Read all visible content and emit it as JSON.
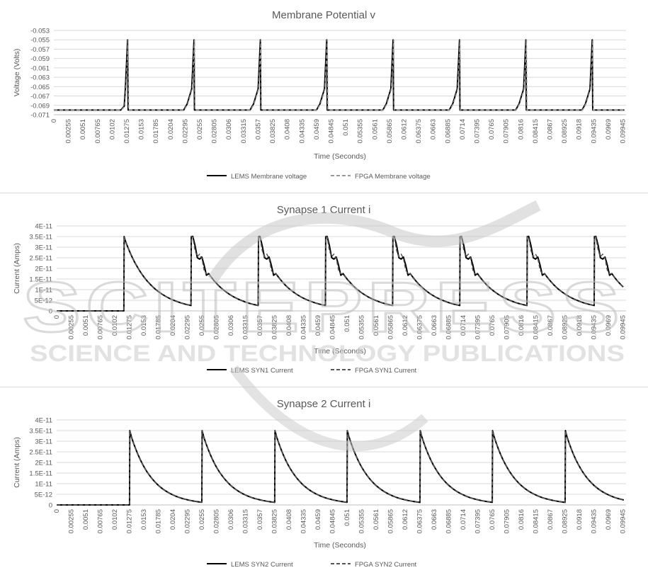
{
  "chart_data": [
    {
      "type": "line",
      "title": "Membrane Potential v",
      "xlabel": "Time (Seconds)",
      "ylabel": "Voltage (Volts)",
      "ylim": [
        -0.071,
        -0.053
      ],
      "yticks": [
        "-0.053",
        "-0.055",
        "-0.057",
        "-0.059",
        "-0.061",
        "-0.063",
        "-0.065",
        "-0.067",
        "-0.069",
        "-0.071"
      ],
      "xticks": [
        "0",
        "0.00255",
        "0.0051",
        "0.00765",
        "0.0102",
        "0.01275",
        "0.0153",
        "0.01785",
        "0.0204",
        "0.02295",
        "0.0255",
        "0.02805",
        "0.0306",
        "0.03315",
        "0.0357",
        "0.03825",
        "0.0408",
        "0.04335",
        "0.0459",
        "0.04845",
        "0.051",
        "0.05355",
        "0.0561",
        "0.05865",
        "0.0612",
        "0.06375",
        "0.0663",
        "0.06885",
        "0.0714",
        "0.07395",
        "0.0765",
        "0.07905",
        "0.0816",
        "0.08415",
        "0.0867",
        "0.08925",
        "0.0918",
        "0.09435",
        "0.0969",
        "0.09945"
      ],
      "xrange": [
        0,
        0.1
      ],
      "grid": true,
      "legend_position": "bottom",
      "series": [
        {
          "name": "LEMS Membrane voltage",
          "style": "solid",
          "color": "#000000",
          "spikes": [
            0.0129,
            0.0245,
            0.0361,
            0.0477,
            0.0593,
            0.0709,
            0.0825,
            0.0941
          ]
        },
        {
          "name": "FPGA Membrane voltage",
          "style": "dashed",
          "color": "#999999",
          "spikes": [
            0.013,
            0.0246,
            0.0362,
            0.0478,
            0.0594,
            0.071,
            0.0826,
            0.0942
          ]
        }
      ],
      "rest_value": -0.07,
      "peak_value": -0.055
    },
    {
      "type": "line",
      "title": "Synapse 1 Current i",
      "xlabel": "Time (Seconds)",
      "ylabel": "Current (Amps)",
      "ylim": [
        0,
        4e-11
      ],
      "yticks": [
        "4E-11",
        "3.5E-11",
        "3E-11",
        "2.5E-11",
        "2E-11",
        "1.5E-11",
        "1E-11",
        "5E-12",
        "0"
      ],
      "xticks": [
        "0",
        "0.00255",
        "0.0051",
        "0.00765",
        "0.0102",
        "0.01275",
        "0.0153",
        "0.01785",
        "0.0204",
        "0.02295",
        "0.0255",
        "0.02805",
        "0.0306",
        "0.03315",
        "0.0357",
        "0.03825",
        "0.0408",
        "0.04335",
        "0.0459",
        "0.04845",
        "0.051",
        "0.05355",
        "0.0561",
        "0.05865",
        "0.0612",
        "0.06375",
        "0.0663",
        "0.06885",
        "0.0714",
        "0.07395",
        "0.0765",
        "0.07905",
        "0.0816",
        "0.08415",
        "0.0867",
        "0.08925",
        "0.0918",
        "0.09435",
        "0.0969",
        "0.09945"
      ],
      "xrange": [
        0,
        0.1
      ],
      "grid": true,
      "legend_position": "bottom",
      "series": [
        {
          "name": "LEMS SYN1 Current",
          "style": "solid",
          "color": "#000000",
          "pulses": [
            0.0118,
            0.0236,
            0.0354,
            0.0472,
            0.059,
            0.0708,
            0.0826,
            0.0944
          ]
        },
        {
          "name": "FPGA SYN1 Current",
          "style": "dashed",
          "color": "#555555",
          "pulses": [
            0.0118,
            0.0236,
            0.0354,
            0.0472,
            0.059,
            0.0708,
            0.0826,
            0.0944
          ]
        }
      ],
      "peak_value": 3.5e-11
    },
    {
      "type": "line",
      "title": "Synapse 2 Current i",
      "xlabel": "Time (Seconds)",
      "ylabel": "Current (Amps)",
      "ylim": [
        0,
        4e-11
      ],
      "yticks": [
        "4E-11",
        "3.5E-11",
        "3E-11",
        "2.5E-11",
        "2E-11",
        "1.5E-11",
        "1E-11",
        "5E-12",
        "0"
      ],
      "xticks": [
        "0",
        "0.00255",
        "0.0051",
        "0.00765",
        "0.0102",
        "0.01275",
        "0.0153",
        "0.01785",
        "0.0204",
        "0.02295",
        "0.0255",
        "0.02805",
        "0.0306",
        "0.03315",
        "0.0357",
        "0.03825",
        "0.0408",
        "0.04335",
        "0.0459",
        "0.04845",
        "0.051",
        "0.05355",
        "0.0561",
        "0.05865",
        "0.0612",
        "0.06375",
        "0.0663",
        "0.06885",
        "0.0714",
        "0.07395",
        "0.0765",
        "0.07905",
        "0.0816",
        "0.08415",
        "0.0867",
        "0.08925",
        "0.0918",
        "0.09435",
        "0.0969",
        "0.09945"
      ],
      "xrange": [
        0,
        0.1
      ],
      "grid": true,
      "legend_position": "bottom",
      "series": [
        {
          "name": "LEMS SYN2 Current",
          "style": "solid",
          "color": "#000000",
          "pulses": [
            0.0128,
            0.0255,
            0.0383,
            0.051,
            0.0638,
            0.0765,
            0.0893
          ]
        },
        {
          "name": "FPGA SYN2 Current",
          "style": "dashed",
          "color": "#555555",
          "pulses": [
            0.0128,
            0.0255,
            0.0383,
            0.051,
            0.0638,
            0.0765,
            0.0893
          ]
        }
      ],
      "peak_value": 3.5e-11
    }
  ],
  "watermark": {
    "line1": "SCITEPRESS",
    "line2": "SCIENCE AND TECHNOLOGY PUBLICATIONS"
  }
}
